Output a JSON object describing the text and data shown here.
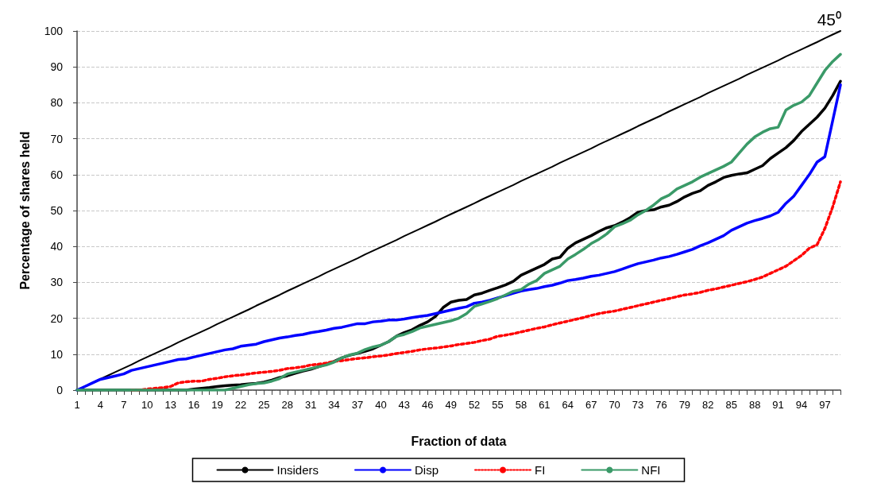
{
  "chart_data": {
    "type": "line",
    "xlabel": "Fraction of data",
    "ylabel": "Percentage of shares held",
    "annotations": [
      "45⁰"
    ],
    "categories": [
      "1",
      null,
      null,
      "4",
      null,
      null,
      "7",
      null,
      null,
      "10",
      null,
      null,
      "13",
      null,
      null,
      "16",
      null,
      null,
      "19",
      null,
      null,
      "22",
      null,
      null,
      "25",
      null,
      null,
      "28",
      null,
      null,
      "31",
      null,
      null,
      "34",
      null,
      null,
      "37",
      null,
      null,
      "40",
      null,
      null,
      "43",
      null,
      null,
      "46",
      null,
      null,
      "49",
      null,
      null,
      "52",
      null,
      null,
      "55",
      null,
      null,
      "58",
      null,
      null,
      "61",
      null,
      null,
      "64",
      null,
      null,
      "67",
      null,
      null,
      "70",
      null,
      null,
      "73",
      null,
      null,
      "76",
      null,
      null,
      "79",
      null,
      null,
      "82",
      null,
      null,
      "85",
      null,
      null,
      "88",
      null,
      null,
      "91",
      null,
      null,
      "94",
      null,
      null,
      "97",
      null,
      null
    ],
    "series": [
      {
        "color": "#000000",
        "values": [
          0,
          1.0,
          2.0,
          3.1,
          4.1,
          5.1,
          6.1,
          7.1,
          8.2,
          9.2,
          10.2,
          11.2,
          12.2,
          13.3,
          14.3,
          15.3,
          16.3,
          17.3,
          18.4,
          19.4,
          20.4,
          21.4,
          22.4,
          23.5,
          24.5,
          25.5,
          26.5,
          27.6,
          28.6,
          29.6,
          30.6,
          31.6,
          32.7,
          33.7,
          34.7,
          35.7,
          36.7,
          37.8,
          38.8,
          39.8,
          40.8,
          41.8,
          42.9,
          43.9,
          44.9,
          45.9,
          46.9,
          48.0,
          49.0,
          50.0,
          51.0,
          52.0,
          53.1,
          54.1,
          55.1,
          56.1,
          57.1,
          58.2,
          59.2,
          60.2,
          61.2,
          62.2,
          63.3,
          64.3,
          65.3,
          66.3,
          67.3,
          68.4,
          69.4,
          70.4,
          71.4,
          72.4,
          73.5,
          74.5,
          75.5,
          76.5,
          77.6,
          78.6,
          79.6,
          80.6,
          81.6,
          82.7,
          83.7,
          84.7,
          85.7,
          86.7,
          87.8,
          88.8,
          89.8,
          90.8,
          91.8,
          92.9,
          93.9,
          94.9,
          95.9,
          96.9,
          98.0,
          99.0,
          100
        ]
      },
      {
        "name": "Insiders",
        "color": "#000000",
        "values": [
          0,
          0,
          0,
          0,
          0,
          0,
          0,
          0,
          0,
          0,
          0,
          0,
          0,
          0,
          0,
          0.3,
          0.5,
          0.7,
          1,
          1.2,
          1.4,
          1.5,
          1.7,
          1.9,
          2.2,
          2.8,
          3.5,
          4,
          4.7,
          5.3,
          5.8,
          6.5,
          7.2,
          8,
          9,
          9.7,
          10.2,
          10.8,
          11.5,
          12.5,
          13.5,
          15,
          16,
          16.8,
          18,
          19,
          20.5,
          23,
          24.5,
          25,
          25.2,
          26.5,
          27,
          27.8,
          28.5,
          29.3,
          30.3,
          32,
          33,
          34,
          35,
          36.5,
          37,
          39.5,
          41,
          42,
          43,
          44.2,
          45.2,
          45.8,
          46.8,
          48,
          49.5,
          50,
          50.2,
          51,
          51.5,
          52.5,
          53.8,
          54.8,
          55.5,
          57,
          58,
          59.2,
          59.8,
          60.2,
          60.5,
          61.5,
          62.5,
          64.5,
          66,
          67.5,
          69.5,
          72,
          74,
          76,
          78.5,
          82,
          86
        ]
      },
      {
        "name": "Disp",
        "color": "#0000ff",
        "values": [
          0,
          1,
          2,
          3,
          3.5,
          4,
          4.5,
          5.5,
          6,
          6.5,
          7,
          7.5,
          8,
          8.5,
          8.7,
          9.2,
          9.7,
          10.2,
          10.7,
          11.2,
          11.5,
          12.2,
          12.5,
          12.8,
          13.5,
          14,
          14.5,
          14.8,
          15.2,
          15.5,
          16,
          16.3,
          16.7,
          17.2,
          17.5,
          18,
          18.5,
          18.5,
          19,
          19.2,
          19.5,
          19.5,
          19.8,
          20.2,
          20.5,
          20.8,
          21.3,
          21.8,
          22.3,
          22.8,
          23.2,
          24.2,
          24.5,
          25,
          25.7,
          26.3,
          27,
          27.6,
          28,
          28.3,
          28.8,
          29.2,
          29.8,
          30.5,
          30.8,
          31.2,
          31.7,
          32,
          32.5,
          33,
          33.7,
          34.5,
          35.2,
          35.7,
          36.2,
          36.8,
          37.2,
          37.8,
          38.5,
          39.2,
          40.2,
          41,
          42,
          43,
          44.5,
          45.5,
          46.5,
          47.2,
          47.8,
          48.5,
          49.5,
          52,
          54,
          57,
          60,
          63.5,
          65,
          75,
          85
        ]
      },
      {
        "name": "FI",
        "color": "#ff0000",
        "line_style": "dotted",
        "values": [
          null,
          null,
          null,
          null,
          null,
          null,
          null,
          0,
          0,
          0.3,
          0.5,
          0.7,
          1,
          2,
          2.3,
          2.5,
          2.5,
          3,
          3.3,
          3.7,
          4,
          4.2,
          4.5,
          4.8,
          5,
          5.2,
          5.5,
          6,
          6.2,
          6.5,
          7,
          7.2,
          7.5,
          8,
          8.2,
          8.5,
          8.8,
          9,
          9.3,
          9.5,
          9.8,
          10.2,
          10.5,
          10.8,
          11.2,
          11.5,
          11.7,
          12,
          12.3,
          12.7,
          13,
          13.3,
          13.8,
          14.2,
          15,
          15.3,
          15.7,
          16.2,
          16.7,
          17.2,
          17.6,
          18.2,
          18.7,
          19.2,
          19.7,
          20.2,
          20.8,
          21.3,
          21.7,
          22,
          22.5,
          23,
          23.5,
          24,
          24.5,
          25,
          25.5,
          26,
          26.5,
          26.8,
          27.2,
          27.8,
          28.2,
          28.7,
          29.2,
          29.7,
          30.2,
          30.8,
          31.5,
          32.5,
          33.5,
          34.5,
          36,
          37.5,
          39.5,
          40.5,
          45,
          51,
          58
        ]
      },
      {
        "name": "NFI",
        "color": "#3a9a68",
        "values": [
          0,
          0,
          0,
          0,
          0,
          0,
          0,
          0,
          0,
          0,
          0,
          0,
          0,
          0,
          0,
          0,
          0,
          0,
          0,
          0,
          0.5,
          1,
          1.5,
          1.8,
          2,
          2.5,
          3.2,
          4.5,
          5,
          5.5,
          6,
          6.5,
          7,
          7.8,
          9,
          9.8,
          10.3,
          11.3,
          12,
          12.5,
          13.5,
          15,
          15.5,
          16.3,
          17.3,
          17.8,
          18.3,
          18.8,
          19.3,
          20,
          21.3,
          23.3,
          24,
          24.7,
          25.5,
          26.5,
          27.5,
          28,
          29.5,
          30.5,
          32.5,
          33.5,
          34.5,
          36.5,
          37.8,
          39.2,
          40.8,
          42,
          43.5,
          45.5,
          46.3,
          47.3,
          48.8,
          50,
          51.5,
          53.3,
          54.3,
          56,
          57,
          58,
          59.3,
          60.3,
          61.3,
          62.3,
          63.5,
          66,
          68.5,
          70.5,
          71.8,
          72.8,
          73.2,
          78,
          79.3,
          80.2,
          82,
          85.5,
          89,
          91.5,
          93.5
        ]
      }
    ],
    "ylim": [
      0,
      100
    ],
    "yticks": [
      0,
      10,
      20,
      30,
      40,
      50,
      60,
      70,
      80,
      90,
      100
    ],
    "grid": "y",
    "legend": "bottom",
    "marker": "none"
  }
}
